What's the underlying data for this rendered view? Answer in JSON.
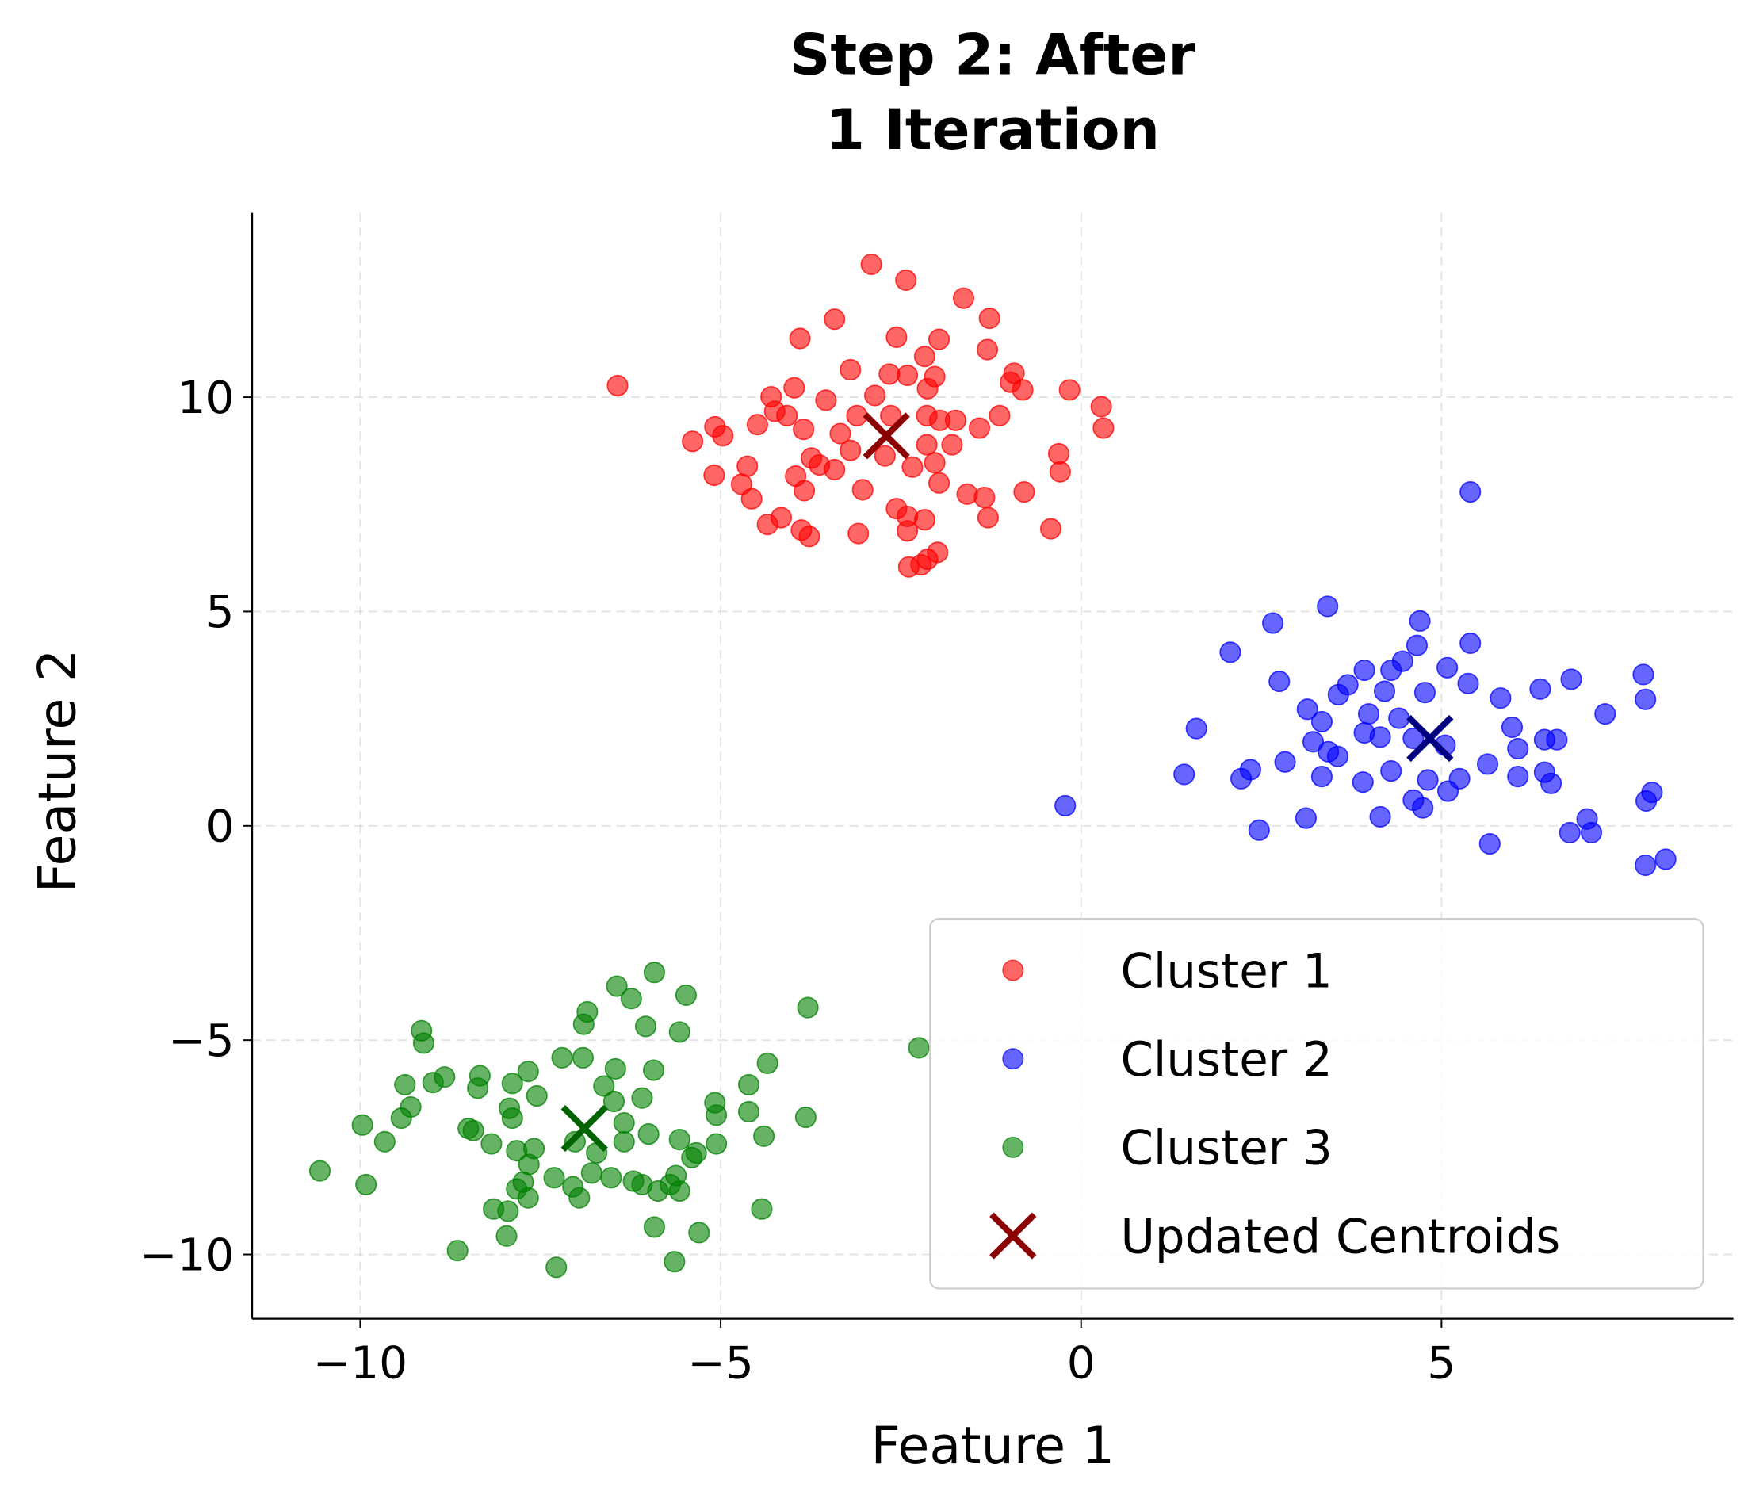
{
  "chart_data": {
    "type": "scatter",
    "title": [
      "Step 2: After",
      "1 Iteration"
    ],
    "xlabel": "Feature 1",
    "ylabel": "Feature 2",
    "xlim": [
      -11.5,
      9.05
    ],
    "ylim": [
      -11.5,
      14.3
    ],
    "grid": true,
    "legend_position": "lower-right",
    "x_ticks": [
      {
        "value": -10,
        "label": "−10"
      },
      {
        "value": -5,
        "label": "−5"
      },
      {
        "value": 0,
        "label": "0"
      },
      {
        "value": 5,
        "label": "5"
      }
    ],
    "y_ticks": [
      {
        "value": -10,
        "label": "−10"
      },
      {
        "value": -5,
        "label": "−5"
      },
      {
        "value": 0,
        "label": "0"
      },
      {
        "value": 5,
        "label": "5"
      },
      {
        "value": 10,
        "label": "10"
      }
    ],
    "series": [
      {
        "name": "Cluster 1",
        "color": "#ff0000",
        "alpha": 0.6,
        "points": [
          [
            -6.43,
            10.27
          ],
          [
            -2.91,
            13.1
          ],
          [
            -2.43,
            12.73
          ],
          [
            -1.63,
            12.31
          ],
          [
            -1.27,
            11.84
          ],
          [
            -3.42,
            11.82
          ],
          [
            -3.9,
            11.37
          ],
          [
            -2.56,
            11.4
          ],
          [
            -1.97,
            11.35
          ],
          [
            -1.3,
            11.11
          ],
          [
            -2.17,
            10.95
          ],
          [
            -3.2,
            10.64
          ],
          [
            -2.66,
            10.54
          ],
          [
            -2.41,
            10.51
          ],
          [
            -2.03,
            10.48
          ],
          [
            -0.93,
            10.56
          ],
          [
            -0.98,
            10.35
          ],
          [
            -0.81,
            10.17
          ],
          [
            -0.16,
            10.17
          ],
          [
            0.28,
            9.78
          ],
          [
            0.31,
            9.28
          ],
          [
            -3.98,
            10.22
          ],
          [
            -4.3,
            10.01
          ],
          [
            -3.54,
            9.93
          ],
          [
            -2.86,
            10.04
          ],
          [
            -2.13,
            10.2
          ],
          [
            -4.25,
            9.67
          ],
          [
            -4.08,
            9.57
          ],
          [
            -3.85,
            9.25
          ],
          [
            -5.08,
            9.31
          ],
          [
            -4.97,
            9.1
          ],
          [
            -5.39,
            8.97
          ],
          [
            -4.49,
            9.36
          ],
          [
            -3.34,
            9.15
          ],
          [
            -3.11,
            9.57
          ],
          [
            -1.96,
            9.46
          ],
          [
            -1.74,
            9.46
          ],
          [
            -1.41,
            9.28
          ],
          [
            -1.13,
            9.57
          ],
          [
            -2.14,
            9.57
          ],
          [
            -2.64,
            9.57
          ],
          [
            -1.79,
            8.89
          ],
          [
            -2.14,
            8.89
          ],
          [
            -0.31,
            8.68
          ],
          [
            -0.29,
            8.26
          ],
          [
            -4.63,
            8.39
          ],
          [
            -5.09,
            8.18
          ],
          [
            -3.74,
            8.58
          ],
          [
            -3.63,
            8.42
          ],
          [
            -3.2,
            8.76
          ],
          [
            -2.72,
            8.63
          ],
          [
            -2.34,
            8.37
          ],
          [
            -2.03,
            8.47
          ],
          [
            -3.96,
            8.16
          ],
          [
            -4.71,
            7.97
          ],
          [
            -4.57,
            7.63
          ],
          [
            -3.84,
            7.82
          ],
          [
            -3.42,
            8.31
          ],
          [
            -3.03,
            7.84
          ],
          [
            -1.97,
            8.0
          ],
          [
            -1.58,
            7.74
          ],
          [
            -1.34,
            7.66
          ],
          [
            -0.79,
            7.79
          ],
          [
            -2.56,
            7.4
          ],
          [
            -2.41,
            7.22
          ],
          [
            -2.17,
            7.14
          ],
          [
            -1.29,
            7.19
          ],
          [
            -4.16,
            7.19
          ],
          [
            -4.35,
            7.03
          ],
          [
            -3.88,
            6.9
          ],
          [
            -3.77,
            6.75
          ],
          [
            -3.09,
            6.82
          ],
          [
            -2.41,
            6.88
          ],
          [
            -0.42,
            6.93
          ],
          [
            -1.99,
            6.38
          ],
          [
            -2.39,
            6.04
          ],
          [
            -2.22,
            6.09
          ],
          [
            -2.13,
            6.22
          ]
        ]
      },
      {
        "name": "Cluster 2",
        "color": "#0000ff",
        "alpha": 0.6,
        "points": [
          [
            5.4,
            7.79
          ],
          [
            3.42,
            5.12
          ],
          [
            2.66,
            4.73
          ],
          [
            4.7,
            4.78
          ],
          [
            2.07,
            4.05
          ],
          [
            4.66,
            4.21
          ],
          [
            5.4,
            4.26
          ],
          [
            4.46,
            3.84
          ],
          [
            5.08,
            3.69
          ],
          [
            2.75,
            3.37
          ],
          [
            3.93,
            3.63
          ],
          [
            4.3,
            3.63
          ],
          [
            3.7,
            3.29
          ],
          [
            3.57,
            3.06
          ],
          [
            4.21,
            3.14
          ],
          [
            4.77,
            3.11
          ],
          [
            5.37,
            3.32
          ],
          [
            5.82,
            2.98
          ],
          [
            6.37,
            3.19
          ],
          [
            6.8,
            3.42
          ],
          [
            7.8,
            3.53
          ],
          [
            7.83,
            2.95
          ],
          [
            7.27,
            2.61
          ],
          [
            1.6,
            2.27
          ],
          [
            3.14,
            2.72
          ],
          [
            3.34,
            2.43
          ],
          [
            3.99,
            2.61
          ],
          [
            4.41,
            2.51
          ],
          [
            3.93,
            2.17
          ],
          [
            4.61,
            2.04
          ],
          [
            5.05,
            1.88
          ],
          [
            5.98,
            2.3
          ],
          [
            6.43,
            2.01
          ],
          [
            6.6,
            2.01
          ],
          [
            3.22,
            1.96
          ],
          [
            3.43,
            1.73
          ],
          [
            3.56,
            1.62
          ],
          [
            5.64,
            1.44
          ],
          [
            6.06,
            1.8
          ],
          [
            6.43,
            1.25
          ],
          [
            6.52,
            0.99
          ],
          [
            6.06,
            1.15
          ],
          [
            1.43,
            1.2
          ],
          [
            2.35,
            1.31
          ],
          [
            2.22,
            1.1
          ],
          [
            2.83,
            1.49
          ],
          [
            3.34,
            1.15
          ],
          [
            3.91,
            1.02
          ],
          [
            4.3,
            1.28
          ],
          [
            4.81,
            1.07
          ],
          [
            5.09,
            0.81
          ],
          [
            5.25,
            1.1
          ],
          [
            4.61,
            0.6
          ],
          [
            4.74,
            0.42
          ],
          [
            4.15,
            0.21
          ],
          [
            -0.22,
            0.47
          ],
          [
            3.12,
            0.18
          ],
          [
            2.47,
            -0.1
          ],
          [
            7.02,
            0.16
          ],
          [
            6.78,
            -0.16
          ],
          [
            7.08,
            -0.16
          ],
          [
            5.67,
            -0.42
          ],
          [
            7.84,
            0.58
          ],
          [
            7.92,
            0.78
          ],
          [
            7.83,
            -0.92
          ],
          [
            8.11,
            -0.78
          ],
          [
            4.15,
            2.07
          ]
        ]
      },
      {
        "name": "Cluster 3",
        "color": "#008000",
        "alpha": 0.6,
        "points": [
          [
            -5.92,
            -3.42
          ],
          [
            -5.48,
            -3.95
          ],
          [
            -6.44,
            -3.74
          ],
          [
            -6.24,
            -4.03
          ],
          [
            -3.79,
            -4.24
          ],
          [
            -6.85,
            -4.34
          ],
          [
            -6.9,
            -4.63
          ],
          [
            -6.04,
            -4.68
          ],
          [
            -5.57,
            -4.81
          ],
          [
            -9.15,
            -4.78
          ],
          [
            -9.12,
            -5.07
          ],
          [
            -2.25,
            -5.18
          ],
          [
            -7.2,
            -5.41
          ],
          [
            -6.91,
            -5.41
          ],
          [
            -6.46,
            -5.67
          ],
          [
            -5.93,
            -5.7
          ],
          [
            -7.67,
            -5.73
          ],
          [
            -4.35,
            -5.54
          ],
          [
            -8.83,
            -5.86
          ],
          [
            -8.34,
            -5.83
          ],
          [
            -7.89,
            -6.01
          ],
          [
            -8.99,
            -5.99
          ],
          [
            -9.38,
            -6.04
          ],
          [
            -6.62,
            -6.07
          ],
          [
            -4.61,
            -6.04
          ],
          [
            -8.37,
            -6.12
          ],
          [
            -7.55,
            -6.3
          ],
          [
            -6.09,
            -6.35
          ],
          [
            -5.08,
            -6.46
          ],
          [
            -9.3,
            -6.56
          ],
          [
            -7.93,
            -6.59
          ],
          [
            -6.48,
            -6.43
          ],
          [
            -4.61,
            -6.67
          ],
          [
            -5.06,
            -6.75
          ],
          [
            -9.43,
            -6.82
          ],
          [
            -7.89,
            -6.82
          ],
          [
            -9.97,
            -6.98
          ],
          [
            -6.34,
            -6.93
          ],
          [
            -3.82,
            -6.8
          ],
          [
            -8.5,
            -7.06
          ],
          [
            -8.43,
            -7.11
          ],
          [
            -6.0,
            -7.19
          ],
          [
            -7.02,
            -7.37
          ],
          [
            -4.4,
            -7.24
          ],
          [
            -6.34,
            -7.37
          ],
          [
            -9.66,
            -7.37
          ],
          [
            -5.57,
            -7.32
          ],
          [
            -5.06,
            -7.42
          ],
          [
            -8.18,
            -7.42
          ],
          [
            -7.59,
            -7.53
          ],
          [
            -7.83,
            -7.58
          ],
          [
            -5.34,
            -7.63
          ],
          [
            -6.72,
            -7.63
          ],
          [
            -5.4,
            -7.74
          ],
          [
            -7.66,
            -7.9
          ],
          [
            -10.56,
            -8.05
          ],
          [
            -7.31,
            -8.21
          ],
          [
            -6.79,
            -8.1
          ],
          [
            -6.52,
            -8.21
          ],
          [
            -6.21,
            -8.29
          ],
          [
            -5.62,
            -8.16
          ],
          [
            -5.7,
            -8.37
          ],
          [
            -9.92,
            -8.37
          ],
          [
            -7.74,
            -8.31
          ],
          [
            -7.05,
            -8.42
          ],
          [
            -6.09,
            -8.37
          ],
          [
            -7.83,
            -8.47
          ],
          [
            -5.87,
            -8.52
          ],
          [
            -5.57,
            -8.52
          ],
          [
            -6.96,
            -8.68
          ],
          [
            -7.67,
            -8.68
          ],
          [
            -8.15,
            -8.94
          ],
          [
            -7.95,
            -8.99
          ],
          [
            -4.43,
            -8.94
          ],
          [
            -5.92,
            -9.36
          ],
          [
            -7.97,
            -9.57
          ],
          [
            -5.3,
            -9.49
          ],
          [
            -8.65,
            -9.91
          ],
          [
            -5.64,
            -10.17
          ],
          [
            -7.28,
            -10.3
          ]
        ]
      }
    ],
    "centroids": {
      "name": "Updated Centroids",
      "marker": "x",
      "points": [
        {
          "x": -2.7,
          "y": 9.1,
          "color": "#8b0000"
        },
        {
          "x": 4.84,
          "y": 2.04,
          "color": "#000080"
        },
        {
          "x": -6.89,
          "y": -7.06,
          "color": "#006400"
        }
      ]
    },
    "legend": [
      {
        "label": "Cluster 1",
        "color": "#ff0000",
        "marker": "circle"
      },
      {
        "label": "Cluster 2",
        "color": "#0000ff",
        "marker": "circle"
      },
      {
        "label": "Cluster 3",
        "color": "#008000",
        "marker": "circle"
      },
      {
        "label": "Updated Centroids",
        "color": "#8b0000",
        "marker": "x"
      }
    ]
  }
}
